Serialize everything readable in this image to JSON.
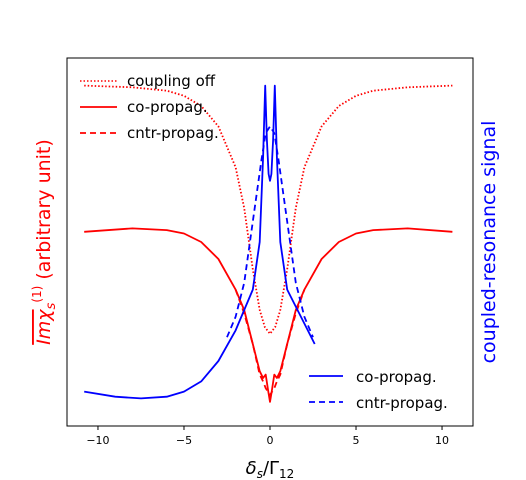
{
  "chart_data": {
    "type": "line",
    "xlabel": "δs/Γ12",
    "ylabel_left": "Imχs(1) (arbitrary unit)",
    "ylabel_right": "coupled-resonance signal",
    "xlim": [
      -11.8,
      11.8
    ],
    "x_ticks": [
      -10,
      -5,
      0,
      5,
      10
    ],
    "x_tick_labels": [
      "−10",
      "−5",
      "0",
      "5",
      "10"
    ],
    "y_ticks_visible": false,
    "grid": false,
    "colors": {
      "left_axis": "#ff0000",
      "right_axis": "#0000ff"
    },
    "legends": [
      {
        "placement": "upper-left",
        "entries": [
          {
            "label": "coupling off",
            "color": "#ff0000",
            "style": "dotted"
          },
          {
            "label": "co-propag.",
            "color": "#ff0000",
            "style": "solid"
          },
          {
            "label": "cntr-propag.",
            "color": "#ff0000",
            "style": "dashed"
          }
        ]
      },
      {
        "placement": "lower-right",
        "entries": [
          {
            "label": "co-propag.",
            "color": "#0000ff",
            "style": "solid"
          },
          {
            "label": "cntr-propag.",
            "color": "#0000ff",
            "style": "dashed"
          }
        ]
      }
    ],
    "series": [
      {
        "axis": "left",
        "color": "#ff0000",
        "style": "dotted",
        "points": [
          [
            -10.8,
            0.96
          ],
          [
            -8,
            0.955
          ],
          [
            -6,
            0.945
          ],
          [
            -5,
            0.93
          ],
          [
            -4,
            0.9
          ],
          [
            -3,
            0.84
          ],
          [
            -2,
            0.72
          ],
          [
            -1.5,
            0.6
          ],
          [
            -1,
            0.42
          ],
          [
            -0.6,
            0.3
          ],
          [
            -0.3,
            0.25
          ],
          [
            0,
            0.23
          ],
          [
            0.3,
            0.25
          ],
          [
            0.6,
            0.3
          ],
          [
            1,
            0.42
          ],
          [
            1.5,
            0.6
          ],
          [
            2,
            0.72
          ],
          [
            3,
            0.84
          ],
          [
            4,
            0.9
          ],
          [
            5,
            0.93
          ],
          [
            6,
            0.945
          ],
          [
            8,
            0.955
          ],
          [
            10.6,
            0.96
          ]
        ]
      },
      {
        "axis": "left",
        "color": "#ff0000",
        "style": "solid",
        "points": [
          [
            -10.8,
            0.53
          ],
          [
            -8,
            0.54
          ],
          [
            -6,
            0.535
          ],
          [
            -5,
            0.525
          ],
          [
            -4,
            0.5
          ],
          [
            -3,
            0.45
          ],
          [
            -2,
            0.36
          ],
          [
            -1.5,
            0.3
          ],
          [
            -1,
            0.2
          ],
          [
            -0.6,
            0.12
          ],
          [
            -0.4,
            0.1
          ],
          [
            -0.25,
            0.11
          ],
          [
            -0.1,
            0.06
          ],
          [
            0,
            0.03
          ],
          [
            0.1,
            0.06
          ],
          [
            0.25,
            0.11
          ],
          [
            0.4,
            0.1
          ],
          [
            0.6,
            0.12
          ],
          [
            1,
            0.2
          ],
          [
            1.5,
            0.3
          ],
          [
            2,
            0.36
          ],
          [
            3,
            0.45
          ],
          [
            4,
            0.5
          ],
          [
            5,
            0.525
          ],
          [
            6,
            0.535
          ],
          [
            8,
            0.54
          ],
          [
            10.6,
            0.53
          ]
        ]
      },
      {
        "axis": "left",
        "color": "#ff0000",
        "style": "dashed",
        "points": [
          [
            -2,
            0.36
          ],
          [
            -1.5,
            0.29
          ],
          [
            -1,
            0.2
          ],
          [
            -0.6,
            0.11
          ],
          [
            -0.4,
            0.09
          ],
          [
            -0.25,
            0.07
          ],
          [
            0,
            0.05
          ],
          [
            0.25,
            0.07
          ],
          [
            0.4,
            0.09
          ],
          [
            0.6,
            0.11
          ],
          [
            1,
            0.2
          ],
          [
            1.5,
            0.29
          ],
          [
            2,
            0.36
          ]
        ]
      },
      {
        "axis": "right",
        "color": "#0000ff",
        "style": "solid",
        "points": [
          [
            -10.8,
            0.06
          ],
          [
            -9,
            0.045
          ],
          [
            -7.5,
            0.04
          ],
          [
            -6,
            0.045
          ],
          [
            -5,
            0.06
          ],
          [
            -4,
            0.09
          ],
          [
            -3,
            0.15
          ],
          [
            -2,
            0.24
          ],
          [
            -1.5,
            0.3
          ],
          [
            -1,
            0.36
          ],
          [
            -0.6,
            0.5
          ],
          [
            -0.4,
            0.75
          ],
          [
            -0.28,
            0.96
          ],
          [
            -0.18,
            0.8
          ],
          [
            -0.08,
            0.7
          ],
          [
            0,
            0.68
          ],
          [
            0.08,
            0.7
          ],
          [
            0.18,
            0.8
          ],
          [
            0.28,
            0.96
          ],
          [
            0.4,
            0.75
          ],
          [
            0.6,
            0.5
          ],
          [
            1,
            0.36
          ],
          [
            1.5,
            0.31
          ],
          [
            2,
            0.26
          ],
          [
            2.6,
            0.2
          ]
        ]
      },
      {
        "axis": "right",
        "color": "#0000ff",
        "style": "dashed",
        "points": [
          [
            -2.5,
            0.22
          ],
          [
            -2,
            0.28
          ],
          [
            -1.5,
            0.38
          ],
          [
            -1,
            0.56
          ],
          [
            -0.5,
            0.74
          ],
          [
            -0.25,
            0.82
          ],
          [
            0,
            0.84
          ],
          [
            0.25,
            0.82
          ],
          [
            0.5,
            0.74
          ],
          [
            1,
            0.56
          ],
          [
            1.5,
            0.38
          ],
          [
            2,
            0.28
          ],
          [
            2.5,
            0.22
          ]
        ]
      }
    ]
  }
}
